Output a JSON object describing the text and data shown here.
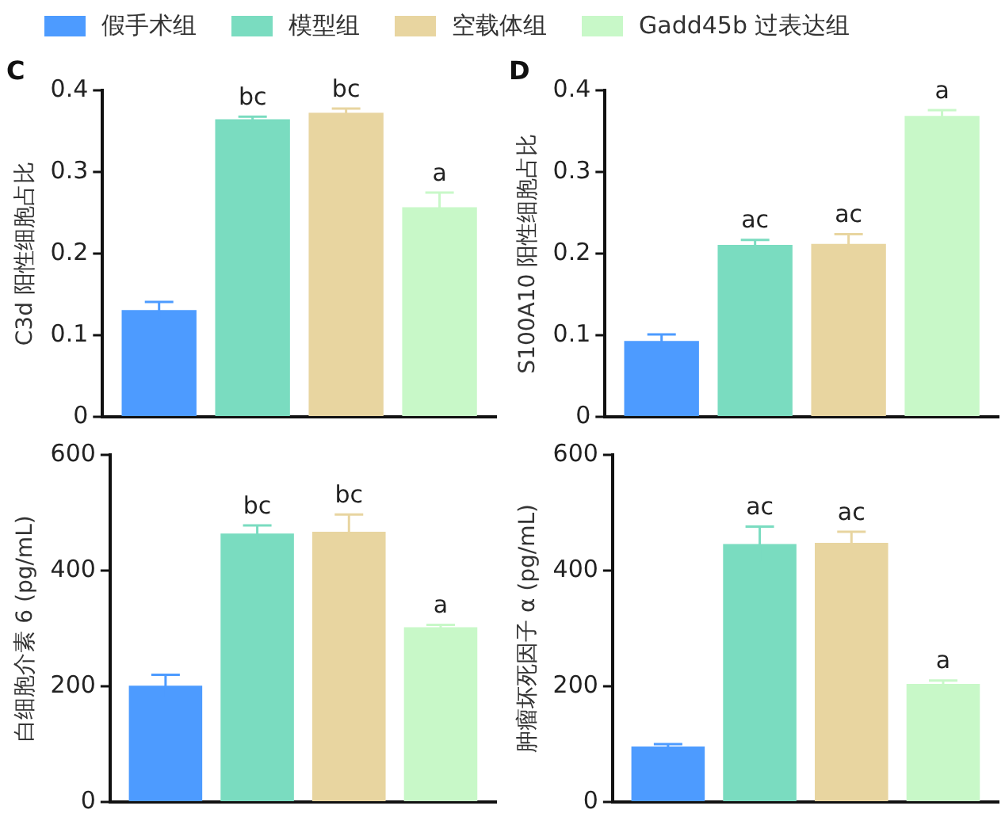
{
  "chart_data": [
    {
      "type": "bar",
      "title": "C",
      "ylabel": "C3d 阳性细胞占比",
      "categories": [
        null
      ],
      "ylim": [
        0,
        0.4
      ],
      "yticks": [
        0,
        0.1,
        0.2,
        0.3,
        0.4
      ],
      "tick_labels": "y",
      "grid": false,
      "legend": "top",
      "series": [
        {
          "name": "假手术组",
          "color": "#4d9bff",
          "values": [
            0.131
          ],
          "errors": [
            0.01
          ]
        },
        {
          "name": "模型组",
          "color": "#7adcc0",
          "values": [
            0.365
          ],
          "errors": [
            0.003
          ],
          "value_labels": [
            "bc"
          ]
        },
        {
          "name": "空载体组",
          "color": "#e8d5a0",
          "values": [
            0.373
          ],
          "errors": [
            0.005
          ],
          "value_labels": [
            "bc"
          ]
        },
        {
          "name": "Gadd45b 过表达组",
          "color": "#c8f8c8",
          "values": [
            0.257
          ],
          "errors": [
            0.018
          ],
          "value_labels": [
            "a"
          ]
        }
      ]
    },
    {
      "type": "bar",
      "title": "D",
      "ylabel": "S100A10 阳性细胞占比",
      "categories": [
        null
      ],
      "ylim": [
        0,
        0.4
      ],
      "yticks": [
        0,
        0.1,
        0.2,
        0.3,
        0.4
      ],
      "tick_labels": "y",
      "grid": false,
      "series": [
        {
          "color": "#4d9bff",
          "values": [
            0.093
          ],
          "errors": [
            0.008
          ]
        },
        {
          "color": "#7adcc0",
          "values": [
            0.211
          ],
          "errors": [
            0.006
          ],
          "value_labels": [
            "ac"
          ]
        },
        {
          "color": "#e8d5a0",
          "values": [
            0.212
          ],
          "errors": [
            0.012
          ],
          "value_labels": [
            "ac"
          ]
        },
        {
          "color": "#c8f8c8",
          "values": [
            0.369
          ],
          "errors": [
            0.007
          ],
          "value_labels": [
            "a"
          ]
        }
      ]
    },
    {
      "type": "bar",
      "ylabel": "白细胞介素 6 (pg/mL)",
      "categories": [
        null
      ],
      "ylim": [
        0,
        600
      ],
      "yticks": [
        0,
        200,
        400,
        600
      ],
      "tick_labels": "y",
      "grid": false,
      "series": [
        {
          "color": "#4d9bff",
          "values": [
            201
          ],
          "errors": [
            19
          ]
        },
        {
          "color": "#7adcc0",
          "values": [
            464
          ],
          "errors": [
            14
          ],
          "value_labels": [
            "bc"
          ]
        },
        {
          "color": "#e8d5a0",
          "values": [
            467
          ],
          "errors": [
            30
          ],
          "value_labels": [
            "bc"
          ]
        },
        {
          "color": "#c8f8c8",
          "values": [
            302
          ],
          "errors": [
            4
          ],
          "value_labels": [
            "a"
          ]
        }
      ]
    },
    {
      "type": "bar",
      "ylabel": "肿瘤坏死因子 α (pg/mL)",
      "categories": [
        null
      ],
      "ylim": [
        0,
        600
      ],
      "yticks": [
        0,
        200,
        400,
        600
      ],
      "tick_labels": "y",
      "grid": false,
      "series": [
        {
          "color": "#4d9bff",
          "values": [
            96
          ],
          "errors": [
            4
          ]
        },
        {
          "color": "#7adcc0",
          "values": [
            446
          ],
          "errors": [
            30
          ],
          "value_labels": [
            "ac"
          ]
        },
        {
          "color": "#e8d5a0",
          "values": [
            448
          ],
          "errors": [
            19
          ],
          "value_labels": [
            "ac"
          ]
        },
        {
          "color": "#c8f8c8",
          "values": [
            204
          ],
          "errors": [
            6
          ],
          "value_labels": [
            "a"
          ]
        }
      ]
    }
  ]
}
